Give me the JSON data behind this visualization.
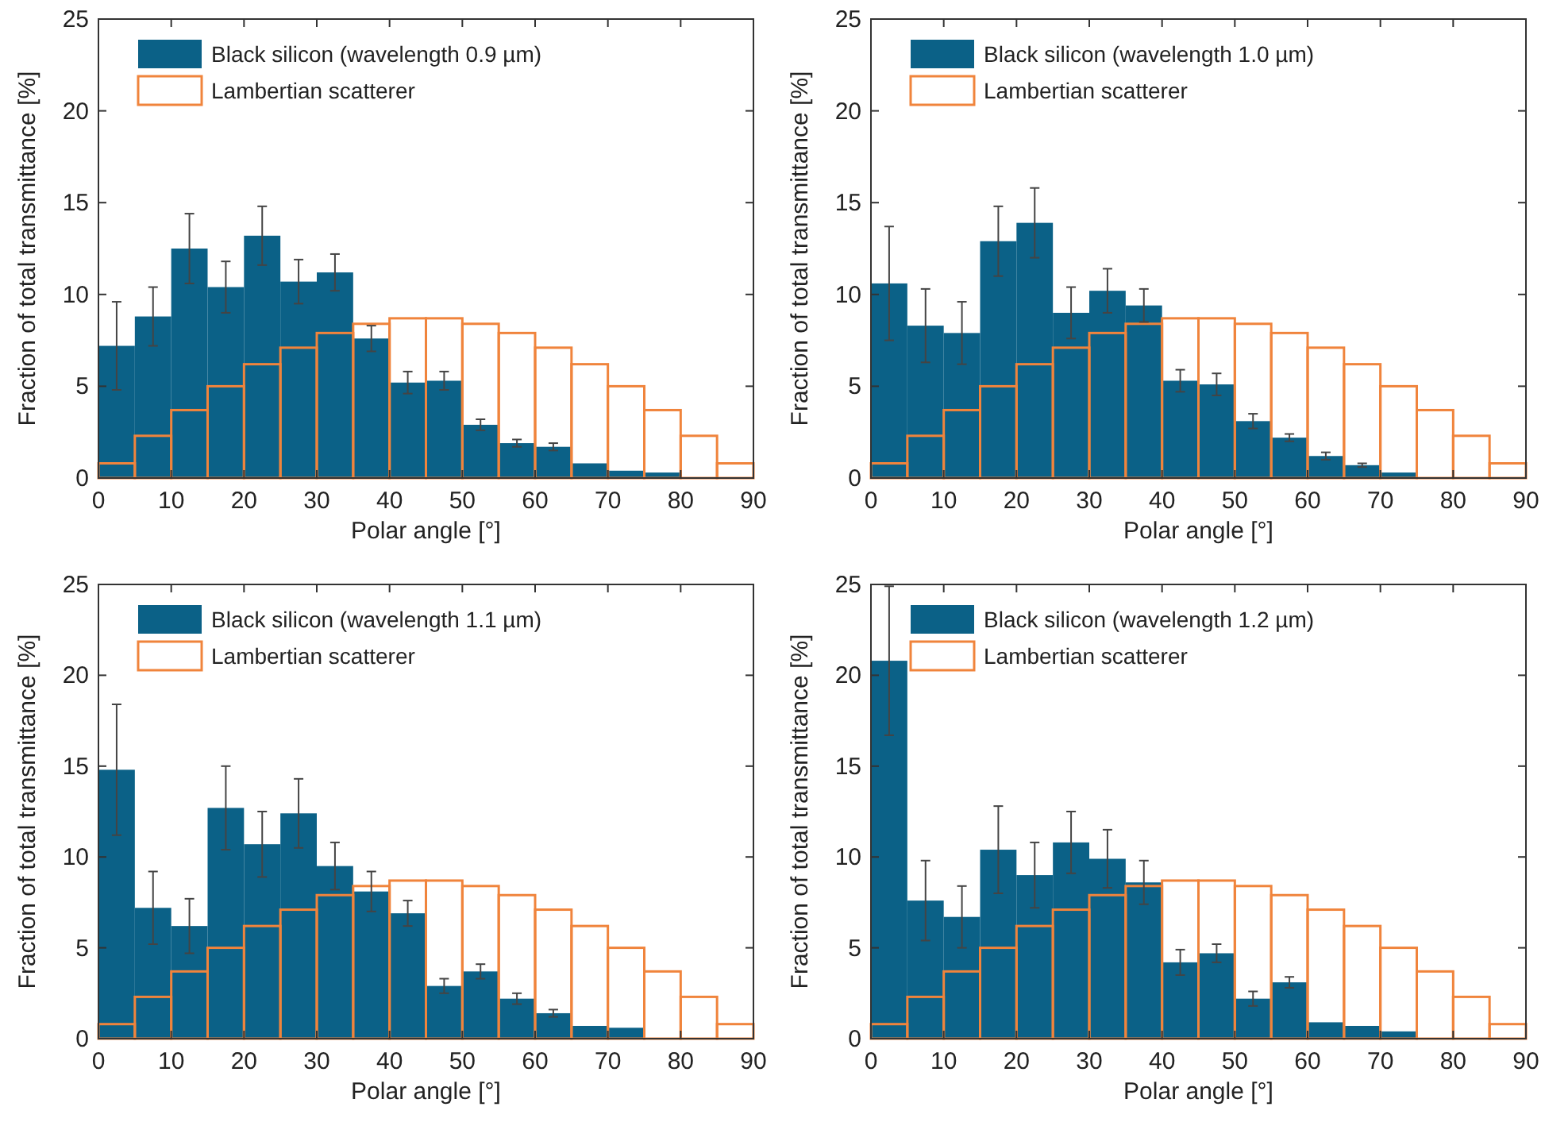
{
  "chart_data": [
    {
      "type": "histogram",
      "xlabel": "Polar angle [°]",
      "ylabel": "Fraction of total transmittance [%]",
      "bins": [
        0,
        5,
        10,
        15,
        20,
        25,
        30,
        35,
        40,
        45,
        50,
        55,
        60,
        65,
        70,
        75,
        80,
        85,
        90
      ],
      "xlim": [
        0,
        90
      ],
      "ylim": [
        0,
        25
      ],
      "xticks": [
        0,
        10,
        20,
        30,
        40,
        50,
        60,
        70,
        80,
        90
      ],
      "yticks": [
        0,
        5,
        10,
        15,
        20,
        25
      ],
      "legend": "top left",
      "series": [
        {
          "name": "Black silicon (wavelength 0.9 µm)",
          "color": "#0b6187",
          "values": [
            7.2,
            8.8,
            12.5,
            10.4,
            13.2,
            10.7,
            11.2,
            7.6,
            5.2,
            5.3,
            2.9,
            1.9,
            1.7,
            0.8,
            0.4,
            0.3,
            0,
            0
          ],
          "errors": [
            2.4,
            1.6,
            1.9,
            1.4,
            1.6,
            1.2,
            1.0,
            0.7,
            0.6,
            0.5,
            0.3,
            0.2,
            0.2,
            null,
            null,
            null,
            null,
            null
          ]
        },
        {
          "name": "Lambertian scatterer",
          "color": "#f0843c",
          "values": [
            0.8,
            2.3,
            3.7,
            5.0,
            6.2,
            7.1,
            7.9,
            8.4,
            8.7,
            8.7,
            8.4,
            7.9,
            7.1,
            6.2,
            5.0,
            3.7,
            2.3,
            0.8
          ]
        }
      ]
    },
    {
      "type": "histogram",
      "xlabel": "Polar angle [°]",
      "ylabel": "Fraction of total transmittance [%]",
      "bins": [
        0,
        5,
        10,
        15,
        20,
        25,
        30,
        35,
        40,
        45,
        50,
        55,
        60,
        65,
        70,
        75,
        80,
        85,
        90
      ],
      "xlim": [
        0,
        90
      ],
      "ylim": [
        0,
        25
      ],
      "xticks": [
        0,
        10,
        20,
        30,
        40,
        50,
        60,
        70,
        80,
        90
      ],
      "yticks": [
        0,
        5,
        10,
        15,
        20,
        25
      ],
      "legend": "top left",
      "series": [
        {
          "name": "Black silicon (wavelength 1.0 µm)",
          "color": "#0b6187",
          "values": [
            10.6,
            8.3,
            7.9,
            12.9,
            13.9,
            9.0,
            10.2,
            9.4,
            5.3,
            5.1,
            3.1,
            2.2,
            1.2,
            0.7,
            0.3,
            null,
            null,
            0
          ],
          "errors": [
            3.1,
            2.0,
            1.7,
            1.9,
            1.9,
            1.4,
            1.2,
            0.9,
            0.6,
            0.6,
            0.4,
            0.2,
            0.2,
            0.1,
            null,
            null,
            null,
            null
          ]
        },
        {
          "name": "Lambertian scatterer",
          "color": "#f0843c",
          "values": [
            0.8,
            2.3,
            3.7,
            5.0,
            6.2,
            7.1,
            7.9,
            8.4,
            8.7,
            8.7,
            8.4,
            7.9,
            7.1,
            6.2,
            5.0,
            3.7,
            2.3,
            0.8
          ]
        }
      ]
    },
    {
      "type": "histogram",
      "xlabel": "Polar angle [°]",
      "ylabel": "Fraction of total transmittance [%]",
      "bins": [
        0,
        5,
        10,
        15,
        20,
        25,
        30,
        35,
        40,
        45,
        50,
        55,
        60,
        65,
        70,
        75,
        80,
        85,
        90
      ],
      "xlim": [
        0,
        90
      ],
      "ylim": [
        0,
        25
      ],
      "xticks": [
        0,
        10,
        20,
        30,
        40,
        50,
        60,
        70,
        80,
        90
      ],
      "yticks": [
        0,
        5,
        10,
        15,
        20,
        25
      ],
      "legend": "top left",
      "series": [
        {
          "name": "Black silicon (wavelength 1.1 µm)",
          "color": "#0b6187",
          "values": [
            14.8,
            7.2,
            6.2,
            12.7,
            10.7,
            12.4,
            9.5,
            8.1,
            6.9,
            2.9,
            3.7,
            2.2,
            1.4,
            0.7,
            0.6,
            null,
            null,
            0
          ],
          "errors": [
            3.6,
            2.0,
            1.5,
            2.3,
            1.8,
            1.9,
            1.3,
            1.1,
            0.7,
            0.4,
            0.4,
            0.3,
            0.2,
            null,
            null,
            null,
            null,
            null
          ]
        },
        {
          "name": "Lambertian scatterer",
          "color": "#f0843c",
          "values": [
            0.8,
            2.3,
            3.7,
            5.0,
            6.2,
            7.1,
            7.9,
            8.4,
            8.7,
            8.7,
            8.4,
            7.9,
            7.1,
            6.2,
            5.0,
            3.7,
            2.3,
            0.8
          ]
        }
      ]
    },
    {
      "type": "histogram",
      "xlabel": "Polar angle [°]",
      "ylabel": "Fraction of total transmittance [%]",
      "bins": [
        0,
        5,
        10,
        15,
        20,
        25,
        30,
        35,
        40,
        45,
        50,
        55,
        60,
        65,
        70,
        75,
        80,
        85,
        90
      ],
      "xlim": [
        0,
        90
      ],
      "ylim": [
        0,
        25
      ],
      "xticks": [
        0,
        10,
        20,
        30,
        40,
        50,
        60,
        70,
        80,
        90
      ],
      "yticks": [
        0,
        5,
        10,
        15,
        20,
        25
      ],
      "legend": "top left",
      "series": [
        {
          "name": "Black silicon (wavelength 1.2 µm)",
          "color": "#0b6187",
          "values": [
            20.8,
            7.6,
            6.7,
            10.4,
            9.0,
            10.8,
            9.9,
            8.6,
            4.2,
            4.7,
            2.2,
            3.1,
            0.9,
            0.7,
            0.4,
            null,
            null,
            0
          ],
          "errors": [
            4.1,
            2.2,
            1.7,
            2.4,
            1.8,
            1.7,
            1.6,
            1.2,
            0.7,
            0.5,
            0.4,
            0.3,
            null,
            null,
            null,
            null,
            null,
            null
          ]
        },
        {
          "name": "Lambertian scatterer",
          "color": "#f0843c",
          "values": [
            0.8,
            2.3,
            3.7,
            5.0,
            6.2,
            7.1,
            7.9,
            8.4,
            8.7,
            8.7,
            8.4,
            7.9,
            7.1,
            6.2,
            5.0,
            3.7,
            2.3,
            0.8
          ]
        }
      ]
    }
  ]
}
